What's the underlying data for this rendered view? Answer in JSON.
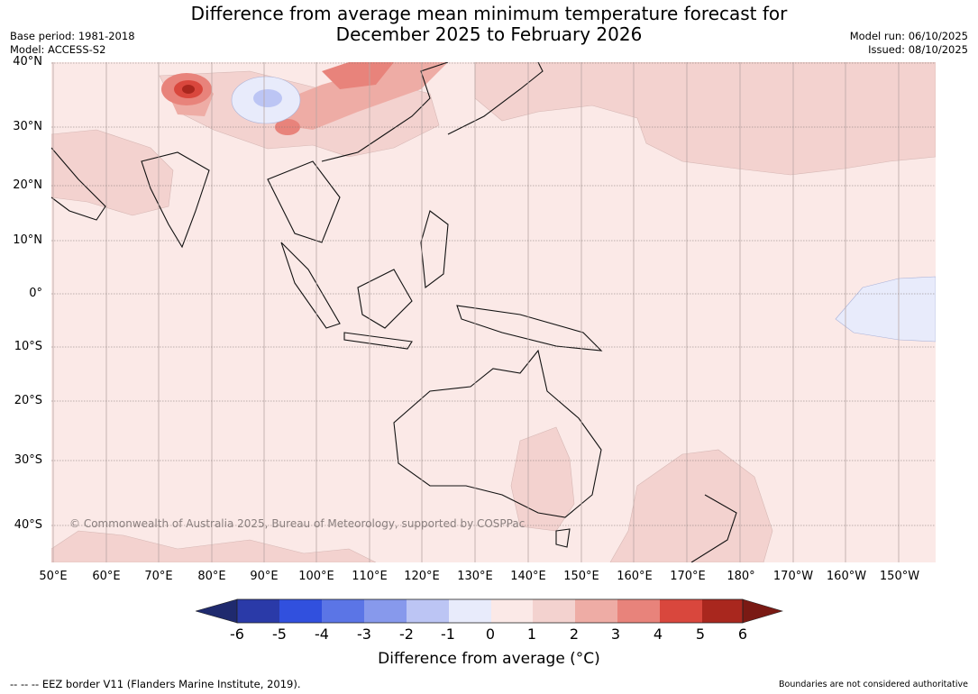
{
  "header": {
    "title_line1": "Difference from average mean minimum temperature forecast for",
    "title_line2": "December 2025 to February 2026",
    "base_period": "Base period: 1981-2018",
    "model": "Model: ACCESS-S2",
    "model_run": "Model run: 06/10/2025",
    "issued": "Issued: 08/10/2025"
  },
  "map": {
    "lat_labels": [
      "40°N",
      "30°N",
      "20°N",
      "10°N",
      "0°",
      "10°S",
      "20°S",
      "30°S",
      "40°S"
    ],
    "lon_labels": [
      "50°E",
      "60°E",
      "70°E",
      "80°E",
      "90°E",
      "100°E",
      "110°E",
      "120°E",
      "130°E",
      "140°E",
      "150°E",
      "160°E",
      "170°E",
      "180°",
      "170°W",
      "160°W",
      "150°W"
    ],
    "copyright": "© Commonwealth of Australia 2025, Bureau of Meteorology, supported by COSPPac",
    "extent": {
      "lon_min": 50,
      "lon_max": 216,
      "lat_min": -47,
      "lat_max": 40
    }
  },
  "legend": {
    "ticks": [
      "-6",
      "-5",
      "-4",
      "-3",
      "-2",
      "-1",
      "0",
      "1",
      "2",
      "3",
      "4",
      "5",
      "6"
    ],
    "label": "Difference from average (°C)",
    "colors": {
      "under": "#1f2a6e",
      "bins": [
        "#2a3aa8",
        "#3150de",
        "#5b75e6",
        "#8799ec",
        "#bcc5f4",
        "#e8ebfb",
        "#fbe9e7",
        "#f3d2cf",
        "#eeaca5",
        "#e8837b",
        "#d9473d",
        "#a9271e"
      ],
      "over": "#7a1a14"
    }
  },
  "footer": {
    "eez_note": "-- -- -- EEZ border V11 (Flanders Marine Institute, 2019).",
    "disclaimer": "Boundaries are not considered authoritative"
  }
}
